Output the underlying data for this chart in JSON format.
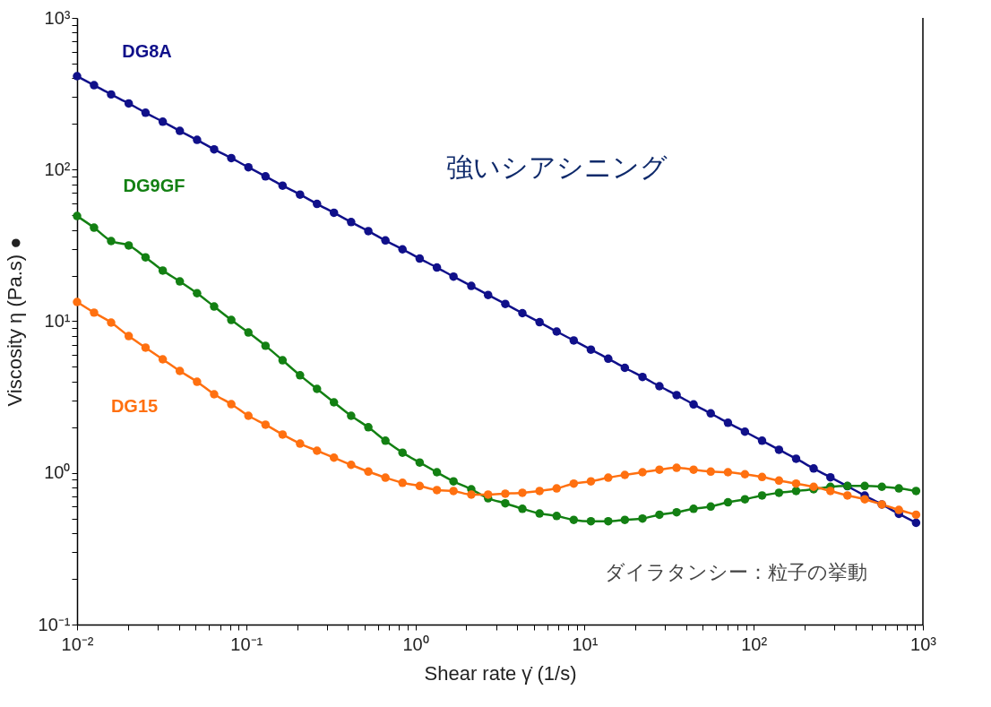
{
  "chart_data": {
    "type": "line",
    "xlabel": "Shear rate γ̇  (1/s)",
    "ylabel": "Viscosity η (Pa.s) ●",
    "log": "xy",
    "grid": false,
    "legend": false,
    "marker": "circle",
    "line_style": "solid",
    "annotations": [
      "強いシアシニング",
      "ダイラタンシー：粒子の挙動"
    ],
    "xlim": [
      0.01,
      1000
    ],
    "ylim": [
      0.1,
      1000
    ],
    "xticks": [
      {
        "value": 0.01,
        "label": "10⁻²"
      },
      {
        "value": 0.02,
        "label": null
      },
      {
        "value": 0.03,
        "label": null
      },
      {
        "value": 0.04,
        "label": null
      },
      {
        "value": 0.05,
        "label": null
      },
      {
        "value": 0.06,
        "label": null
      },
      {
        "value": 0.07,
        "label": null
      },
      {
        "value": 0.08,
        "label": null
      },
      {
        "value": 0.09,
        "label": null
      },
      {
        "value": 0.1,
        "label": "10⁻¹"
      },
      {
        "value": 0.2,
        "label": null
      },
      {
        "value": 0.3,
        "label": null
      },
      {
        "value": 0.4,
        "label": null
      },
      {
        "value": 0.5,
        "label": null
      },
      {
        "value": 0.6,
        "label": null
      },
      {
        "value": 0.7,
        "label": null
      },
      {
        "value": 0.8,
        "label": null
      },
      {
        "value": 0.9,
        "label": null
      },
      {
        "value": 1,
        "label": "10⁰"
      },
      {
        "value": 2,
        "label": null
      },
      {
        "value": 3,
        "label": null
      },
      {
        "value": 4,
        "label": null
      },
      {
        "value": 5,
        "label": null
      },
      {
        "value": 6,
        "label": null
      },
      {
        "value": 7,
        "label": null
      },
      {
        "value": 8,
        "label": null
      },
      {
        "value": 9,
        "label": null
      },
      {
        "value": 10,
        "label": "10¹"
      },
      {
        "value": 20,
        "label": null
      },
      {
        "value": 30,
        "label": null
      },
      {
        "value": 40,
        "label": null
      },
      {
        "value": 50,
        "label": null
      },
      {
        "value": 60,
        "label": null
      },
      {
        "value": 70,
        "label": null
      },
      {
        "value": 80,
        "label": null
      },
      {
        "value": 90,
        "label": null
      },
      {
        "value": 100,
        "label": "10²"
      },
      {
        "value": 200,
        "label": null
      },
      {
        "value": 300,
        "label": null
      },
      {
        "value": 400,
        "label": null
      },
      {
        "value": 500,
        "label": null
      },
      {
        "value": 600,
        "label": null
      },
      {
        "value": 700,
        "label": null
      },
      {
        "value": 800,
        "label": null
      },
      {
        "value": 900,
        "label": null
      },
      {
        "value": 1000,
        "label": "10³"
      }
    ],
    "yticks": [
      {
        "value": 0.1,
        "label": "10⁻¹"
      },
      {
        "value": 0.2,
        "label": null
      },
      {
        "value": 0.3,
        "label": null
      },
      {
        "value": 0.4,
        "label": null
      },
      {
        "value": 0.5,
        "label": null
      },
      {
        "value": 0.6,
        "label": null
      },
      {
        "value": 0.7,
        "label": null
      },
      {
        "value": 0.8,
        "label": null
      },
      {
        "value": 0.9,
        "label": null
      },
      {
        "value": 1,
        "label": "10⁰"
      },
      {
        "value": 2,
        "label": null
      },
      {
        "value": 3,
        "label": null
      },
      {
        "value": 4,
        "label": null
      },
      {
        "value": 5,
        "label": null
      },
      {
        "value": 6,
        "label": null
      },
      {
        "value": 7,
        "label": null
      },
      {
        "value": 8,
        "label": null
      },
      {
        "value": 9,
        "label": null
      },
      {
        "value": 10,
        "label": "10¹"
      },
      {
        "value": 20,
        "label": null
      },
      {
        "value": 30,
        "label": null
      },
      {
        "value": 40,
        "label": null
      },
      {
        "value": 50,
        "label": null
      },
      {
        "value": 60,
        "label": null
      },
      {
        "value": 70,
        "label": null
      },
      {
        "value": 80,
        "label": null
      },
      {
        "value": 90,
        "label": null
      },
      {
        "value": 100,
        "label": "10²"
      },
      {
        "value": 200,
        "label": null
      },
      {
        "value": 300,
        "label": null
      },
      {
        "value": 400,
        "label": null
      },
      {
        "value": 500,
        "label": null
      },
      {
        "value": 600,
        "label": null
      },
      {
        "value": 700,
        "label": null
      },
      {
        "value": 800,
        "label": null
      },
      {
        "value": 900,
        "label": null
      },
      {
        "value": 1000,
        "label": "10³"
      }
    ],
    "x": [
      0.01,
      0.0126,
      0.0159,
      0.0202,
      0.0254,
      0.0321,
      0.0405,
      0.0512,
      0.0646,
      0.0816,
      0.103,
      0.13,
      0.164,
      0.208,
      0.262,
      0.33,
      0.417,
      0.527,
      0.665,
      0.839,
      1.06,
      1.34,
      1.68,
      2.14,
      2.69,
      3.4,
      4.29,
      5.42,
      6.84,
      8.63,
      10.9,
      13.8,
      17.3,
      22,
      27.7,
      35,
      44.1,
      55.7,
      70.4,
      88.7,
      112,
      141,
      178,
      226,
      284,
      358,
      453,
      572,
      721,
      911
    ],
    "series": [
      {
        "name": "DG8A",
        "color": "#10108a",
        "values": [
          413,
          360,
          313,
          273,
          237,
          207,
          180,
          157,
          136,
          119,
          103.5,
          90.2,
          78.4,
          68.4,
          59.4,
          51.9,
          45.1,
          39.3,
          34.1,
          29.8,
          25.9,
          22.6,
          19.7,
          17.1,
          14.9,
          13.0,
          11.3,
          9.85,
          8.55,
          7.47,
          6.5,
          5.66,
          4.93,
          4.29,
          3.73,
          3.26,
          2.83,
          2.47,
          2.14,
          1.87,
          1.63,
          1.42,
          1.24,
          1.07,
          0.935,
          0.817,
          0.709,
          0.619,
          0.537,
          0.469
        ]
      },
      {
        "name": "DG9GF",
        "color": "#138013",
        "values": [
          49.4,
          41.4,
          33.8,
          31.6,
          26.4,
          21.6,
          18.3,
          15.3,
          12.5,
          10.2,
          8.43,
          6.89,
          5.53,
          4.4,
          3.58,
          2.92,
          2.38,
          2.0,
          1.63,
          1.36,
          1.17,
          1.01,
          0.88,
          0.78,
          0.68,
          0.63,
          0.58,
          0.54,
          0.52,
          0.49,
          0.48,
          0.48,
          0.49,
          0.5,
          0.53,
          0.55,
          0.58,
          0.6,
          0.64,
          0.67,
          0.71,
          0.74,
          0.76,
          0.78,
          0.81,
          0.82,
          0.82,
          0.81,
          0.79,
          0.76
        ]
      },
      {
        "name": "DG15",
        "color": "#ff7010",
        "values": [
          13.4,
          11.4,
          9.8,
          7.98,
          6.7,
          5.61,
          4.7,
          3.99,
          3.3,
          2.84,
          2.38,
          2.08,
          1.79,
          1.56,
          1.4,
          1.26,
          1.13,
          1.02,
          0.93,
          0.86,
          0.82,
          0.77,
          0.76,
          0.72,
          0.72,
          0.73,
          0.74,
          0.76,
          0.79,
          0.85,
          0.88,
          0.93,
          0.97,
          1.01,
          1.05,
          1.08,
          1.05,
          1.02,
          1.01,
          0.98,
          0.94,
          0.89,
          0.85,
          0.81,
          0.76,
          0.71,
          0.67,
          0.62,
          0.57,
          0.53
        ]
      }
    ]
  }
}
